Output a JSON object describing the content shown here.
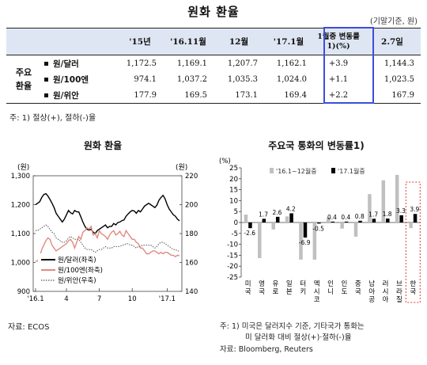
{
  "title": "원화 환율",
  "unit_note": "(기말기준, 원)",
  "table": {
    "headers": [
      "",
      "",
      "'15년",
      "'16.11월",
      "12월",
      "'17.1월",
      "1월중 변동률1)(%)",
      "2.7일"
    ],
    "group_label": [
      "주요",
      "환율"
    ],
    "rows": [
      {
        "label": "원/달러",
        "values": [
          "1,172.5",
          "1,169.1",
          "1,207.7",
          "1,162.1",
          "+3.9",
          "1,144.3"
        ]
      },
      {
        "label": "원/100엔",
        "values": [
          "974.1",
          "1,037.2",
          "1,035.3",
          "1,024.0",
          "+1.1",
          "1,023.5"
        ]
      },
      {
        "label": "원/위안",
        "values": [
          "177.9",
          "169.5",
          "173.1",
          "169.4",
          "+2.2",
          "167.9"
        ]
      }
    ],
    "footnote": "주: 1) 절상(+), 절하(-)율"
  },
  "left_chart": {
    "title": "원화 환율",
    "ylabel_left": "(원)",
    "ylabel_right": "(원)",
    "source": "자료: ECOS"
  },
  "right_chart": {
    "title": "주요국 통화의 변동률1)",
    "ylabel": "(%)",
    "footnotes": [
      "주: 1) 미국은 달러지수 기준, 기타국가 통화는",
      "미 달러화 대비 절상(+)·절하(-)율",
      "자료: Bloomberg, Reuters"
    ]
  },
  "chart_data": [
    {
      "type": "line",
      "title": "원화 환율",
      "x_ticks": [
        "'16.1",
        "4",
        "7",
        "10",
        "'17.1"
      ],
      "ylim_left": [
        900,
        1300
      ],
      "yticks_left": [
        "1,300",
        "1,200",
        "1,100",
        "1,000",
        "900"
      ],
      "ylim_right": [
        140,
        220
      ],
      "yticks_right": [
        "220",
        "200",
        "180",
        "160",
        "140"
      ],
      "legend_position": "bottom-left",
      "series": [
        {
          "name": "원/달러(좌축)",
          "axis": "left",
          "color": "#000000",
          "style": "solid",
          "values": [
            1200,
            1205,
            1210,
            1225,
            1235,
            1238,
            1230,
            1218,
            1205,
            1190,
            1170,
            1160,
            1150,
            1140,
            1150,
            1165,
            1180,
            1172,
            1168,
            1180,
            1175,
            1175,
            1158,
            1140,
            1125,
            1115,
            1112,
            1115,
            1105,
            1100,
            1110,
            1115,
            1120,
            1125,
            1130,
            1120,
            1125,
            1125,
            1135,
            1130,
            1138,
            1140,
            1145,
            1147,
            1160,
            1168,
            1175,
            1180,
            1178,
            1170,
            1180,
            1175,
            1185,
            1195,
            1200,
            1205,
            1200,
            1195,
            1190,
            1198,
            1215,
            1225,
            1232,
            1220,
            1200,
            1185,
            1175,
            1165,
            1160,
            1150,
            1144
          ]
        },
        {
          "name": "원/100엔(좌축)",
          "axis": "left",
          "color": "#e08a80",
          "style": "solid",
          "values": [
            1005,
            1005,
            1020,
            1045,
            1060,
            1075,
            1085,
            1080,
            1060,
            1050,
            1040,
            1045,
            1050,
            1055,
            1060,
            1065,
            1075,
            1080,
            1070,
            1050,
            1070,
            1090,
            1080,
            1105,
            1110,
            1120,
            1115,
            1125,
            1095,
            1100,
            1085,
            1110,
            1100,
            1095,
            1090,
            1080,
            1095,
            1105,
            1110,
            1095,
            1100,
            1108,
            1095,
            1090,
            1110,
            1100,
            1090,
            1080,
            1080,
            1070,
            1065,
            1050,
            1050,
            1040,
            1030,
            1030,
            1035,
            1040,
            1040,
            1035,
            1030,
            1035,
            1030,
            1035,
            1035,
            1030,
            1025,
            1025,
            1020,
            1025,
            1023
          ]
        },
        {
          "name": "원/위안(우축)",
          "axis": "right",
          "color": "#555555",
          "style": "dotted",
          "values": [
            182,
            182,
            183,
            184,
            185,
            186,
            185,
            183,
            181,
            180,
            177,
            176,
            175,
            174,
            174,
            175,
            177,
            178,
            177,
            176,
            176,
            176,
            174,
            172,
            170,
            169,
            169,
            169,
            168,
            167,
            168,
            169,
            169,
            170,
            171,
            170,
            170,
            170,
            171,
            171,
            171,
            171,
            172,
            172,
            173,
            173,
            172,
            172,
            171,
            170,
            171,
            171,
            172,
            172,
            172,
            172,
            172,
            171,
            170,
            171,
            173,
            174,
            174,
            173,
            172,
            171,
            170,
            169,
            169,
            168,
            167.9
          ]
        }
      ]
    },
    {
      "type": "bar",
      "title": "주요국 통화의 변동률1)",
      "ylabel": "(%)",
      "ylim": [
        -25,
        25
      ],
      "yticks": [
        25,
        20,
        15,
        10,
        5,
        0,
        -5,
        -10,
        -15,
        -20,
        -25
      ],
      "categories": [
        "미국",
        "영국",
        "유로",
        "일본",
        "터키",
        "멕시코",
        "인니",
        "인도",
        "중국",
        "남아공",
        "러시아",
        "브라질",
        "한국"
      ],
      "legend_position": "top",
      "highlight_category": "한국",
      "series": [
        {
          "name": "'16.1~12월중",
          "color": "#c0c0c0",
          "values": [
            3.6,
            -16.3,
            -3.2,
            2.8,
            -17.0,
            -17.0,
            2.3,
            -2.8,
            -6.5,
            13.0,
            19.3,
            21.8,
            -2.6
          ]
        },
        {
          "name": "'17.1월중",
          "color": "#000000",
          "values": [
            -2.6,
            1.7,
            2.6,
            4.2,
            -6.9,
            -0.5,
            0.4,
            0.4,
            0.8,
            1.7,
            1.8,
            3.3,
            3.9
          ]
        }
      ]
    }
  ]
}
